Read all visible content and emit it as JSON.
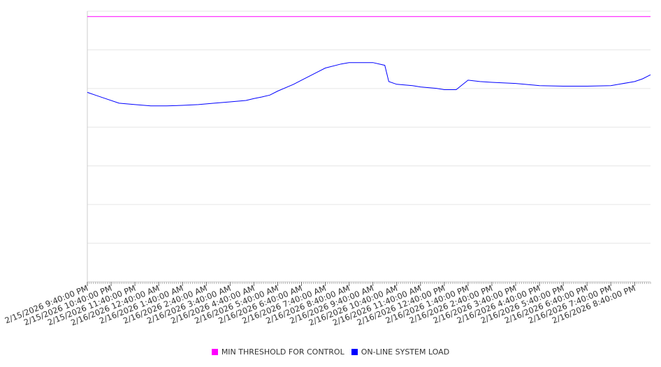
{
  "chart_data": {
    "type": "line",
    "title": "",
    "xlabel": "",
    "ylabel": "",
    "grid": true,
    "legend_position": "bottom",
    "x_ticks": [
      "2/15/2026 9:40:00 PM",
      "2/15/2026 10:40:00 PM",
      "2/15/2026 11:40:00 PM",
      "2/16/2026 12:40:00 AM",
      "2/16/2026 1:40:00 AM",
      "2/16/2026 2:40:00 AM",
      "2/16/2026 3:40:00 AM",
      "2/16/2026 4:40:00 AM",
      "2/16/2026 5:40:00 AM",
      "2/16/2026 6:40:00 AM",
      "2/16/2026 7:40:00 AM",
      "2/16/2026 8:40:00 AM",
      "2/16/2026 9:40:00 AM",
      "2/16/2026 10:40:00 AM",
      "2/16/2026 11:40:00 AM",
      "2/16/2026 12:40:00 PM",
      "2/16/2026 1:40:00 PM",
      "2/16/2026 2:40:00 PM",
      "2/16/2026 3:40:00 PM",
      "2/16/2026 4:40:00 PM",
      "2/16/2026 5:40:00 PM",
      "2/16/2026 6:40:00 PM",
      "2/16/2026 7:40:00 PM",
      "2/16/2026 8:40:00 PM"
    ],
    "x_range": [
      "2/15/2026 9:40:00 PM",
      "2/16/2026 9:20:00 PM"
    ],
    "y_range_fraction": [
      0,
      1
    ],
    "series": [
      {
        "name": "MIN THRESHOLD FOR CONTROL",
        "color": "#ff00ff",
        "points": [
          [
            "2/15/2026 9:40:00 PM",
            0.98
          ],
          [
            "2/16/2026 9:20:00 PM",
            0.98
          ]
        ]
      },
      {
        "name": "ON-LINE SYSTEM LOAD",
        "color": "#0000ff",
        "points": [
          [
            "2/15/2026 9:40:00 PM",
            0.7
          ],
          [
            "2/15/2026 10:00:00 PM",
            0.69
          ],
          [
            "2/15/2026 10:20:00 PM",
            0.68
          ],
          [
            "2/15/2026 11:00:00 PM",
            0.66
          ],
          [
            "2/15/2026 11:40:00 PM",
            0.655
          ],
          [
            "2/16/2026 12:20:00 AM",
            0.65
          ],
          [
            "2/16/2026 1:00:00 AM",
            0.65
          ],
          [
            "2/16/2026 1:40:00 AM",
            0.652
          ],
          [
            "2/16/2026 2:20:00 AM",
            0.655
          ],
          [
            "2/16/2026 3:00:00 AM",
            0.66
          ],
          [
            "2/16/2026 3:40:00 AM",
            0.665
          ],
          [
            "2/16/2026 4:20:00 AM",
            0.67
          ],
          [
            "2/16/2026 4:40:00 AM",
            0.677
          ],
          [
            "2/16/2026 5:00:00 AM",
            0.683
          ],
          [
            "2/16/2026 5:20:00 AM",
            0.69
          ],
          [
            "2/16/2026 5:40:00 AM",
            0.705
          ],
          [
            "2/16/2026 6:20:00 AM",
            0.73
          ],
          [
            "2/16/2026 6:40:00 AM",
            0.745
          ],
          [
            "2/16/2026 7:20:00 AM",
            0.775
          ],
          [
            "2/16/2026 7:40:00 AM",
            0.79
          ],
          [
            "2/16/2026 8:20:00 AM",
            0.805
          ],
          [
            "2/16/2026 8:40:00 AM",
            0.81
          ],
          [
            "2/16/2026 9:20:00 AM",
            0.81
          ],
          [
            "2/16/2026 9:40:00 AM",
            0.81
          ],
          [
            "2/16/2026 10:10:00 AM",
            0.8
          ],
          [
            "2/16/2026 10:20:00 AM",
            0.74
          ],
          [
            "2/16/2026 10:40:00 AM",
            0.73
          ],
          [
            "2/16/2026 11:20:00 AM",
            0.725
          ],
          [
            "2/16/2026 11:40:00 AM",
            0.72
          ],
          [
            "2/16/2026 12:20:00 PM",
            0.715
          ],
          [
            "2/16/2026 12:40:00 PM",
            0.71
          ],
          [
            "2/16/2026 1:10:00 PM",
            0.71
          ],
          [
            "2/16/2026 1:40:00 PM",
            0.745
          ],
          [
            "2/16/2026 2:10:00 PM",
            0.74
          ],
          [
            "2/16/2026 2:40:00 PM",
            0.737
          ],
          [
            "2/16/2026 3:40:00 PM",
            0.733
          ],
          [
            "2/16/2026 4:40:00 PM",
            0.725
          ],
          [
            "2/16/2026 5:40:00 PM",
            0.723
          ],
          [
            "2/16/2026 6:40:00 PM",
            0.723
          ],
          [
            "2/16/2026 7:40:00 PM",
            0.725
          ],
          [
            "2/16/2026 8:40:00 PM",
            0.74
          ],
          [
            "2/16/2026 9:00:00 PM",
            0.75
          ],
          [
            "2/16/2026 9:20:00 PM",
            0.765
          ]
        ]
      }
    ],
    "legend": [
      {
        "label": "MIN THRESHOLD FOR CONTROL",
        "color": "#ff00ff"
      },
      {
        "label": "ON-LINE SYSTEM LOAD",
        "color": "#0000ff"
      }
    ]
  }
}
